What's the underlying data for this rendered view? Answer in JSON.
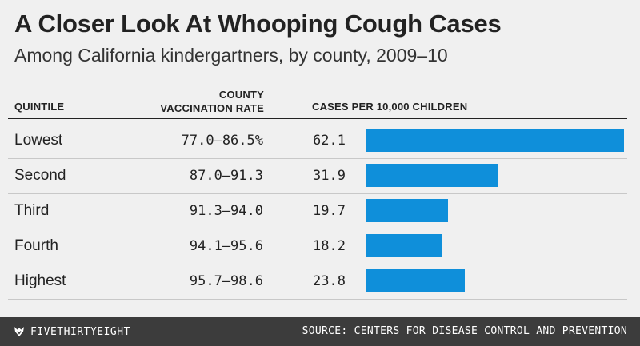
{
  "colors": {
    "bar": "#0f8fda",
    "footer_bg": "#3c3c3c"
  },
  "chart_data": {
    "type": "table",
    "title": "A Closer Look At Whooping Cough Cases",
    "subtitle": "Among California kindergartners, by county, 2009–10",
    "columns": {
      "quintile": "QUINTILE",
      "county_line1": "COUNTY",
      "county_line2": "VACCINATION RATE",
      "cases": "CASES PER 10,000 CHILDREN"
    },
    "bar_max": 62.1,
    "rows": [
      {
        "quintile": "Lowest",
        "rate": "77.0–86.5%",
        "cases_label": "62.1",
        "cases": 62.1
      },
      {
        "quintile": "Second",
        "rate": "87.0–91.3",
        "cases_label": "31.9",
        "cases": 31.9
      },
      {
        "quintile": "Third",
        "rate": "91.3–94.0",
        "cases_label": "19.7",
        "cases": 19.7
      },
      {
        "quintile": "Fourth",
        "rate": "94.1–95.6",
        "cases_label": "18.2",
        "cases": 18.2
      },
      {
        "quintile": "Highest",
        "rate": "95.7–98.6",
        "cases_label": "23.8",
        "cases": 23.8
      }
    ]
  },
  "footer": {
    "logo_icon": "fivethirtyeight-fox-icon",
    "brand": "FIVETHIRTYEIGHT",
    "source": "SOURCE: CENTERS FOR DISEASE CONTROL AND PREVENTION"
  }
}
